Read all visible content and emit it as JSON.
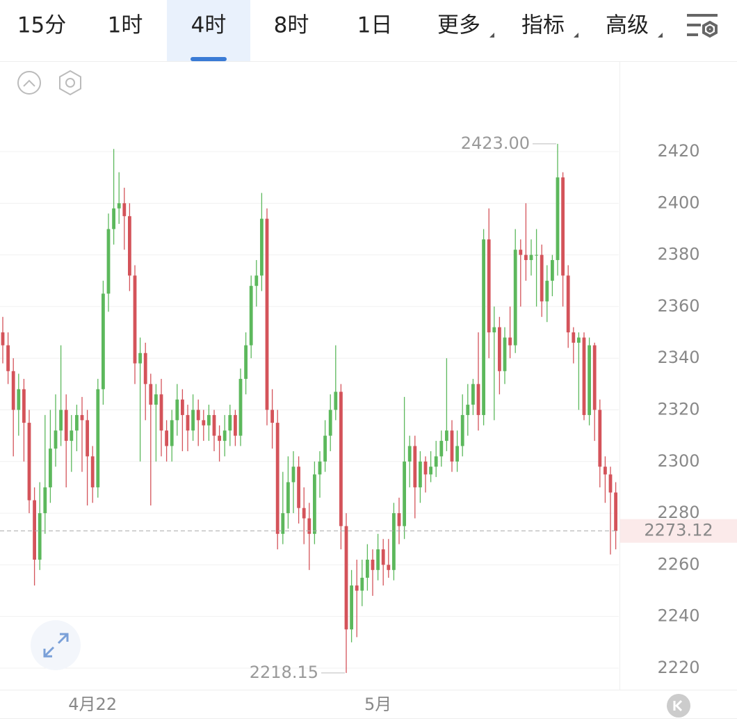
{
  "tabs": [
    "15分",
    "1时",
    "4时",
    "8时",
    "1日",
    "更多",
    "指标",
    "高级"
  ],
  "active_tab": 2,
  "chart_data": {
    "type": "candlestick",
    "up_color": "#5cb85c",
    "down_color": "#d4535a",
    "ylim": [
      2211.65,
      2455
    ],
    "yticks": [
      2220,
      2240,
      2260,
      2280,
      2300,
      2320,
      2340,
      2360,
      2380,
      2400,
      2420
    ],
    "grid": true,
    "max_label": {
      "value": 2423,
      "label": "2423.00"
    },
    "min_label": {
      "value": 2218.15,
      "label": "2218.15"
    },
    "last_price": 2273.12,
    "categories": [
      null,
      null,
      null,
      null,
      null,
      null,
      null,
      null,
      null,
      null,
      null,
      null,
      null,
      null,
      null,
      null,
      null,
      "4月22",
      null,
      null,
      null,
      null,
      null,
      null,
      null,
      null,
      null,
      null,
      null,
      null,
      null,
      null,
      null,
      null,
      null,
      null,
      null,
      null,
      null,
      null,
      null,
      null,
      null,
      null,
      null,
      null,
      null,
      null,
      null,
      null,
      null,
      null,
      null,
      null,
      null,
      null,
      null,
      null,
      null,
      null,
      null,
      null,
      null,
      null,
      null,
      null,
      null,
      null,
      null,
      null,
      null,
      "5月",
      null,
      null,
      null,
      null,
      null,
      null,
      null,
      null,
      null,
      null,
      null,
      null,
      null,
      null,
      null,
      null,
      null,
      null,
      null,
      null,
      null,
      null,
      null,
      null,
      null,
      null,
      null,
      null,
      null,
      null,
      null,
      null,
      null,
      null,
      null,
      null,
      null,
      null,
      null,
      null,
      null,
      null,
      null,
      null,
      null
    ],
    "candles": [
      [
        2350,
        2356,
        2338,
        2345
      ],
      [
        2345,
        2350,
        2330,
        2335
      ],
      [
        2335,
        2340,
        2302,
        2320
      ],
      [
        2320,
        2334,
        2310,
        2328
      ],
      [
        2328,
        2332,
        2300,
        2315
      ],
      [
        2315,
        2320,
        2280,
        2285
      ],
      [
        2285,
        2290,
        2252,
        2262
      ],
      [
        2262,
        2292,
        2258,
        2280
      ],
      [
        2280,
        2318,
        2272,
        2290
      ],
      [
        2290,
        2320,
        2284,
        2305
      ],
      [
        2305,
        2326,
        2298,
        2312
      ],
      [
        2312,
        2345,
        2306,
        2320
      ],
      [
        2320,
        2326,
        2290,
        2308
      ],
      [
        2308,
        2318,
        2296,
        2312
      ],
      [
        2312,
        2322,
        2304,
        2318
      ],
      [
        2318,
        2325,
        2296,
        2316
      ],
      [
        2316,
        2320,
        2283,
        2302
      ],
      [
        2302,
        2306,
        2284,
        2290
      ],
      [
        2290,
        2332,
        2286,
        2328
      ],
      [
        2328,
        2370,
        2322,
        2365
      ],
      [
        2365,
        2396,
        2358,
        2390
      ],
      [
        2390,
        2421,
        2384,
        2398
      ],
      [
        2398,
        2412,
        2392,
        2400
      ],
      [
        2400,
        2406,
        2382,
        2395
      ],
      [
        2395,
        2400,
        2366,
        2372
      ],
      [
        2372,
        2376,
        2330,
        2338
      ],
      [
        2338,
        2348,
        2300,
        2342
      ],
      [
        2342,
        2346,
        2316,
        2330
      ],
      [
        2330,
        2334,
        2283,
        2322
      ],
      [
        2322,
        2330,
        2300,
        2326
      ],
      [
        2326,
        2332,
        2302,
        2312
      ],
      [
        2312,
        2316,
        2300,
        2306
      ],
      [
        2306,
        2320,
        2300,
        2316
      ],
      [
        2316,
        2330,
        2310,
        2324
      ],
      [
        2324,
        2328,
        2304,
        2318
      ],
      [
        2318,
        2322,
        2304,
        2312
      ],
      [
        2312,
        2326,
        2308,
        2320
      ],
      [
        2320,
        2324,
        2306,
        2316
      ],
      [
        2316,
        2320,
        2308,
        2314
      ],
      [
        2314,
        2322,
        2308,
        2318
      ],
      [
        2318,
        2320,
        2304,
        2310
      ],
      [
        2310,
        2314,
        2300,
        2308
      ],
      [
        2308,
        2318,
        2302,
        2312
      ],
      [
        2312,
        2322,
        2306,
        2318
      ],
      [
        2318,
        2320,
        2306,
        2310
      ],
      [
        2310,
        2336,
        2306,
        2332
      ],
      [
        2332,
        2350,
        2326,
        2345
      ],
      [
        2345,
        2372,
        2340,
        2368
      ],
      [
        2368,
        2378,
        2360,
        2372
      ],
      [
        2372,
        2404,
        2366,
        2394
      ],
      [
        2394,
        2398,
        2314,
        2320
      ],
      [
        2320,
        2328,
        2305,
        2315
      ],
      [
        2315,
        2320,
        2266,
        2272
      ],
      [
        2272,
        2296,
        2268,
        2280
      ],
      [
        2280,
        2302,
        2274,
        2292
      ],
      [
        2292,
        2304,
        2280,
        2298
      ],
      [
        2298,
        2302,
        2276,
        2282
      ],
      [
        2282,
        2290,
        2268,
        2278
      ],
      [
        2278,
        2284,
        2258,
        2272
      ],
      [
        2272,
        2300,
        2268,
        2295
      ],
      [
        2295,
        2304,
        2286,
        2300
      ],
      [
        2300,
        2316,
        2296,
        2310
      ],
      [
        2310,
        2326,
        2304,
        2320
      ],
      [
        2320,
        2345,
        2316,
        2327
      ],
      [
        2327,
        2330,
        2266,
        2275
      ],
      [
        2275,
        2280,
        2218.15,
        2235
      ],
      [
        2235,
        2258,
        2230,
        2252
      ],
      [
        2252,
        2262,
        2232,
        2250
      ],
      [
        2250,
        2262,
        2244,
        2255
      ],
      [
        2255,
        2268,
        2250,
        2262
      ],
      [
        2262,
        2266,
        2248,
        2258
      ],
      [
        2258,
        2272,
        2254,
        2266
      ],
      [
        2266,
        2270,
        2252,
        2260
      ],
      [
        2260,
        2270,
        2255,
        2258
      ],
      [
        2258,
        2284,
        2254,
        2280
      ],
      [
        2280,
        2286,
        2268,
        2275
      ],
      [
        2275,
        2325,
        2270,
        2300
      ],
      [
        2300,
        2310,
        2290,
        2306
      ],
      [
        2306,
        2310,
        2278,
        2290
      ],
      [
        2290,
        2304,
        2284,
        2300
      ],
      [
        2300,
        2302,
        2288,
        2295
      ],
      [
        2295,
        2304,
        2292,
        2298
      ],
      [
        2298,
        2308,
        2294,
        2302
      ],
      [
        2302,
        2312,
        2298,
        2308
      ],
      [
        2308,
        2340,
        2304,
        2312
      ],
      [
        2312,
        2316,
        2296,
        2300
      ],
      [
        2300,
        2312,
        2296,
        2306
      ],
      [
        2306,
        2326,
        2302,
        2318
      ],
      [
        2318,
        2330,
        2310,
        2322
      ],
      [
        2322,
        2332,
        2318,
        2330
      ],
      [
        2330,
        2350,
        2312,
        2318
      ],
      [
        2318,
        2390,
        2314,
        2386
      ],
      [
        2386,
        2398,
        2340,
        2350
      ],
      [
        2350,
        2360,
        2316,
        2352
      ],
      [
        2352,
        2356,
        2326,
        2335
      ],
      [
        2335,
        2352,
        2330,
        2348
      ],
      [
        2348,
        2360,
        2340,
        2345
      ],
      [
        2345,
        2390,
        2342,
        2382
      ],
      [
        2382,
        2386,
        2360,
        2380
      ],
      [
        2380,
        2400,
        2370,
        2378
      ],
      [
        2378,
        2386,
        2372,
        2380
      ],
      [
        2380,
        2390,
        2360,
        2380
      ],
      [
        2380,
        2384,
        2356,
        2362
      ],
      [
        2362,
        2376,
        2354,
        2370
      ],
      [
        2370,
        2380,
        2364,
        2378
      ],
      [
        2378,
        2423,
        2372,
        2410
      ],
      [
        2410,
        2412,
        2360,
        2372
      ],
      [
        2372,
        2376,
        2344,
        2350
      ],
      [
        2350,
        2352,
        2338,
        2346
      ],
      [
        2346,
        2350,
        2320,
        2348
      ],
      [
        2348,
        2350,
        2316,
        2318
      ],
      [
        2318,
        2348,
        2314,
        2345
      ],
      [
        2345,
        2346,
        2308,
        2320
      ],
      [
        2320,
        2324,
        2290,
        2298
      ],
      [
        2298,
        2302,
        2284,
        2295
      ],
      [
        2295,
        2298,
        2264,
        2288
      ],
      [
        2288,
        2292,
        2266,
        2273.12
      ]
    ]
  }
}
